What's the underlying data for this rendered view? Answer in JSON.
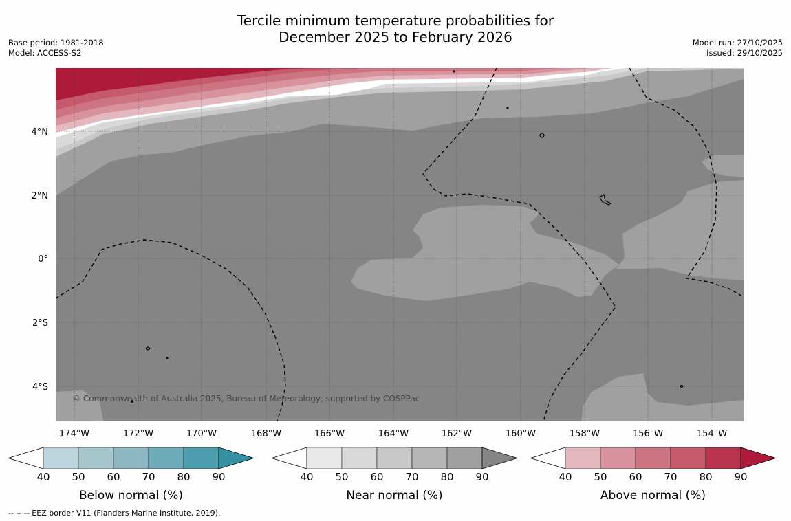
{
  "title_line1": "Tercile minimum temperature probabilities for",
  "title_line2": "December 2025 to February 2026",
  "meta_left": {
    "base_period": "Base period: 1981-2018",
    "model": "Model: ACCESS-S2"
  },
  "meta_right": {
    "model_run": "Model run: 27/10/2025",
    "issued": "Issued: 29/10/2025"
  },
  "lat_labels": [
    "4°N",
    "2°N",
    "0°",
    "2°S",
    "4°S"
  ],
  "lon_labels": [
    "174°W",
    "172°W",
    "170°W",
    "168°W",
    "166°W",
    "164°W",
    "162°W",
    "160°W",
    "158°W",
    "156°W",
    "154°W"
  ],
  "copyright": "© Commonwealth of Australia 2025, Bureau of Meteorology, supported by COSPPac",
  "colorbars": [
    {
      "label": "Below normal (%)",
      "ticks": [
        "40",
        "50",
        "60",
        "70",
        "80",
        "90"
      ],
      "colors": [
        "#ffffff",
        "#bcd4db",
        "#a7c7cc",
        "#8cb7c3",
        "#6eabb8",
        "#4c9dad",
        "#3592a4"
      ]
    },
    {
      "label": "Near normal (%)",
      "ticks": [
        "40",
        "50",
        "60",
        "70",
        "80",
        "90"
      ],
      "colors": [
        "#ffffff",
        "#e8e8e8",
        "#d9d9d9",
        "#c8c8c8",
        "#b6b6b6",
        "#a0a0a0",
        "#858585"
      ]
    },
    {
      "label": "Above normal (%)",
      "ticks": [
        "40",
        "50",
        "60",
        "70",
        "80",
        "90"
      ],
      "colors": [
        "#ffffff",
        "#e3b8bf",
        "#d8929d",
        "#cc7482",
        "#c45a6b",
        "#b8344e",
        "#ad1a3a"
      ]
    }
  ],
  "footnote": "-- -- -- EEZ border V11 (Flanders Marine Institute, 2019)."
}
